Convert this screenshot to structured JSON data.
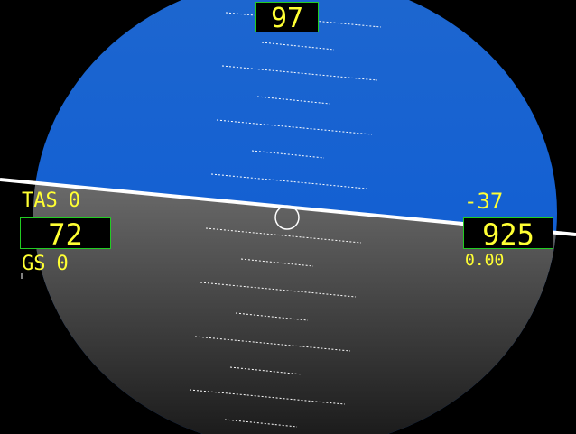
{
  "heading": {
    "value": "97"
  },
  "airspeed": {
    "tas_label": "TAS",
    "tas_value": "0",
    "value": "72",
    "gs_label": "GS",
    "gs_value": "0"
  },
  "altitude": {
    "value": "925",
    "vertical_speed_top": "-37",
    "vertical_speed_bottom": "0.00"
  },
  "colors": {
    "sky_top": "#1f62cc",
    "sky_bottom": "#0a5fd8",
    "ground_top": "#6a6a6a",
    "ground_bottom": "#1e1e1e",
    "text": "#ffff33",
    "box_border": "#22cc22",
    "horizon": "#ffffff"
  },
  "attitude": {
    "bank_deg": 4.2,
    "pitch_deg": -2
  }
}
